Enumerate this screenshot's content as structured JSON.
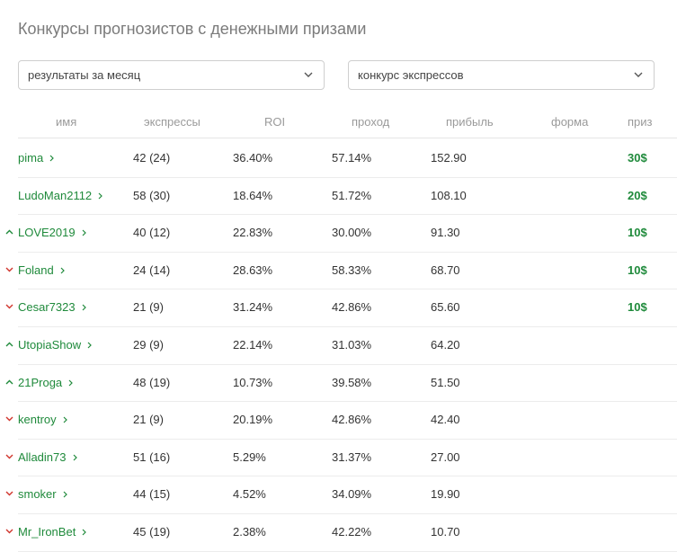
{
  "page": {
    "title": "Конкурсы прогнозистов с денежными призами"
  },
  "filters": {
    "period": "результаты за месяц",
    "contest": "конкурс экспрессов"
  },
  "table": {
    "headers": [
      "имя",
      "экспрессы",
      "ROI",
      "проход",
      "прибыль",
      "форма",
      "приз"
    ],
    "rows": [
      {
        "trend": "none",
        "name": "pima",
        "express": "42 (24)",
        "roi": "36.40%",
        "pass": "57.14%",
        "profit": "152.90",
        "prize": "30$"
      },
      {
        "trend": "none",
        "name": "LudoMan2112",
        "express": "58 (30)",
        "roi": "18.64%",
        "pass": "51.72%",
        "profit": "108.10",
        "prize": "20$"
      },
      {
        "trend": "up",
        "name": "LOVE2019",
        "express": "40 (12)",
        "roi": "22.83%",
        "pass": "30.00%",
        "profit": "91.30",
        "prize": "10$"
      },
      {
        "trend": "down",
        "name": "Foland",
        "express": "24 (14)",
        "roi": "28.63%",
        "pass": "58.33%",
        "profit": "68.70",
        "prize": "10$"
      },
      {
        "trend": "down",
        "name": "Cesar7323",
        "express": "21 (9)",
        "roi": "31.24%",
        "pass": "42.86%",
        "profit": "65.60",
        "prize": "10$"
      },
      {
        "trend": "up",
        "name": "UtopiaShow",
        "express": "29 (9)",
        "roi": "22.14%",
        "pass": "31.03%",
        "profit": "64.20",
        "prize": ""
      },
      {
        "trend": "up",
        "name": "21Proga",
        "express": "48 (19)",
        "roi": "10.73%",
        "pass": "39.58%",
        "profit": "51.50",
        "prize": ""
      },
      {
        "trend": "down",
        "name": "kentroy",
        "express": "21 (9)",
        "roi": "20.19%",
        "pass": "42.86%",
        "profit": "42.40",
        "prize": ""
      },
      {
        "trend": "down",
        "name": "Alladin73",
        "express": "51 (16)",
        "roi": "5.29%",
        "pass": "31.37%",
        "profit": "27.00",
        "prize": ""
      },
      {
        "trend": "down",
        "name": "smoker",
        "express": "44 (15)",
        "roi": "4.52%",
        "pass": "34.09%",
        "profit": "19.90",
        "prize": ""
      },
      {
        "trend": "down",
        "name": "Mr_IronBet",
        "express": "45 (19)",
        "roi": "2.38%",
        "pass": "42.22%",
        "profit": "10.70",
        "prize": ""
      }
    ]
  },
  "colors": {
    "accent_green": "#1f8a3b",
    "trend_up": "#1f8a3b",
    "trend_down": "#d0342c"
  },
  "icons": {
    "select_chevron": "chevron-down-icon",
    "name_link": "chevron-right-icon",
    "trend_up": "trend-up-icon",
    "trend_down": "trend-down-icon"
  }
}
